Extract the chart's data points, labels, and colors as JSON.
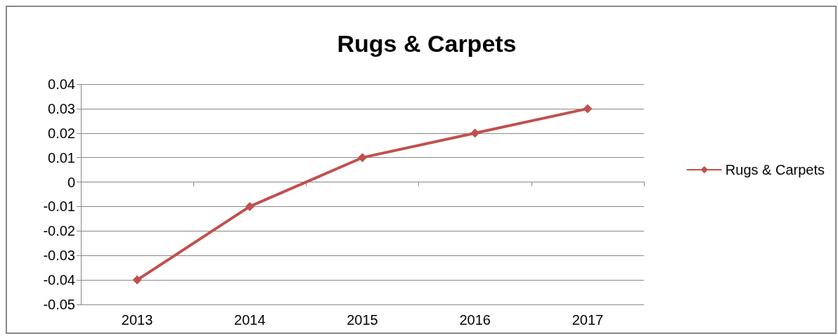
{
  "chart_data": {
    "type": "line",
    "title": "Rugs & Carpets",
    "categories": [
      "2013",
      "2014",
      "2015",
      "2016",
      "2017"
    ],
    "series": [
      {
        "name": "Rugs & Carpets",
        "color": "#c0504d",
        "values": [
          -0.04,
          -0.01,
          0.01,
          0.02,
          0.03
        ]
      }
    ],
    "ylim": [
      -0.05,
      0.04
    ],
    "yticks": [
      -0.05,
      -0.04,
      -0.03,
      -0.02,
      -0.01,
      0,
      0.01,
      0.02,
      0.03,
      0.04
    ],
    "grid": "y",
    "legend": "right",
    "marker": "diamond",
    "line_style": "solid"
  }
}
